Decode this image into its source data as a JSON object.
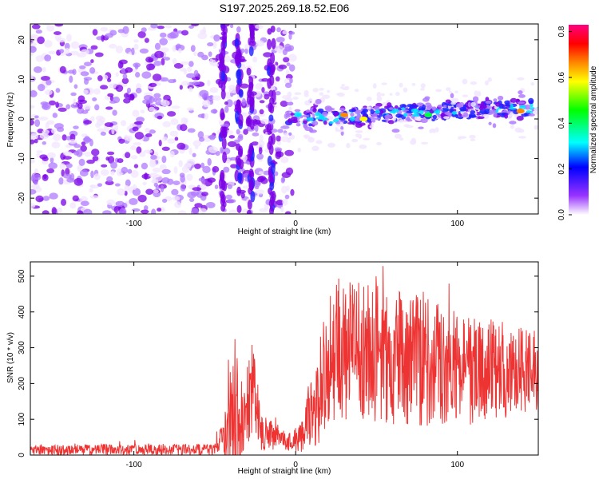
{
  "figure": {
    "title": "S197.2025.269.18.52.E06"
  },
  "chart_data": [
    {
      "type": "heatmap",
      "title": "",
      "xlabel": "Height of straight line (km)",
      "ylabel": "Frequency (Hz)",
      "xlim": [
        -164,
        150
      ],
      "ylim": [
        -24,
        24
      ],
      "xticks": [
        -100,
        0,
        100
      ],
      "yticks": [
        -20,
        -10,
        0,
        10,
        20
      ],
      "grid": false,
      "colorbar": {
        "label": "Normalized spectral amplitude",
        "range": [
          0.0,
          0.83
        ],
        "ticks": [
          0.0,
          0.2,
          0.4,
          0.6,
          0.8
        ],
        "colormap": [
          "#ffffff",
          "#9933ff",
          "#0000ff",
          "#00ffff",
          "#00ff00",
          "#ffff00",
          "#ff8800",
          "#ff0000",
          "#ff0080"
        ]
      },
      "features": {
        "noise_region_x": [
          -164,
          -2
        ],
        "vertical_streaks_x": [
          -45,
          -35,
          -28,
          -15
        ],
        "signal_band_x": [
          -5,
          150
        ],
        "signal_band_center_freq": [
          0,
          3
        ],
        "peak_amplitude_points": [
          {
            "x": 30,
            "y": 1.0,
            "value": 0.8
          },
          {
            "x": 42,
            "y": 0.0,
            "value": 0.75
          },
          {
            "x": 82,
            "y": 1.0,
            "value": 0.6
          },
          {
            "x": 139,
            "y": 2.0,
            "value": 0.8
          }
        ]
      }
    },
    {
      "type": "line",
      "title": "",
      "xlabel": "Height of straight line (km)",
      "ylabel": "SNR (10 * v/v)",
      "xlim": [
        -164,
        150
      ],
      "ylim": [
        0,
        540
      ],
      "xticks": [
        -100,
        0,
        100
      ],
      "yticks": [
        0,
        100,
        200,
        300,
        400,
        500
      ],
      "grid": false,
      "series": [
        {
          "color": "#ee3333",
          "envelope": [
            {
              "x": -164,
              "base": 15,
              "amp": 15
            },
            {
              "x": -50,
              "base": 15,
              "amp": 15
            },
            {
              "x": -44,
              "base": 60,
              "amp": 60
            },
            {
              "x": -37,
              "base": 150,
              "amp": 200
            },
            {
              "x": -32,
              "base": 90,
              "amp": 80
            },
            {
              "x": -27,
              "base": 200,
              "amp": 150
            },
            {
              "x": -22,
              "base": 80,
              "amp": 70
            },
            {
              "x": -15,
              "base": 55,
              "amp": 40
            },
            {
              "x": -5,
              "base": 35,
              "amp": 25
            },
            {
              "x": 5,
              "base": 50,
              "amp": 50
            },
            {
              "x": 12,
              "base": 160,
              "amp": 150
            },
            {
              "x": 25,
              "base": 300,
              "amp": 200
            },
            {
              "x": 60,
              "base": 280,
              "amp": 200
            },
            {
              "x": 100,
              "base": 240,
              "amp": 160
            },
            {
              "x": 150,
              "base": 230,
              "amp": 120
            }
          ]
        }
      ]
    }
  ]
}
